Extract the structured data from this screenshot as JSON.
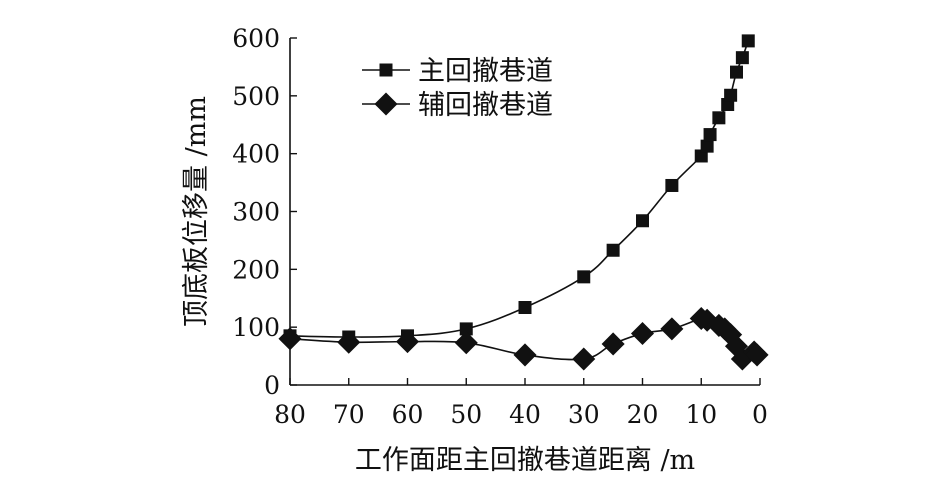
{
  "chart_data": {
    "type": "line",
    "title": "",
    "xlabel": "工作面距主回撤巷道距离 /m",
    "ylabel": "顶底板位移量 /mm",
    "xlim": [
      80,
      0
    ],
    "ylim": [
      0,
      600
    ],
    "x_reversed": true,
    "x_ticks": [
      "80",
      "70",
      "60",
      "50",
      "40",
      "30",
      "20",
      "10",
      "0"
    ],
    "y_ticks": [
      "0",
      "100",
      "200",
      "300",
      "400",
      "500",
      "600"
    ],
    "grid": false,
    "legend_position": "top-center",
    "series": [
      {
        "name": "主回撤巷道",
        "marker": "square",
        "color": "#111111",
        "points": [
          [
            80,
            85
          ],
          [
            70,
            83
          ],
          [
            60,
            85
          ],
          [
            50,
            97
          ],
          [
            40,
            134
          ],
          [
            30,
            187
          ],
          [
            25,
            233
          ],
          [
            20,
            284
          ],
          [
            15,
            345
          ],
          [
            10,
            396
          ],
          [
            9,
            413
          ],
          [
            8.5,
            433
          ],
          [
            7,
            462
          ],
          [
            5.5,
            485
          ],
          [
            5,
            501
          ],
          [
            4,
            541
          ],
          [
            3,
            566
          ],
          [
            2,
            595
          ]
        ]
      },
      {
        "name": "辅回撤巷道",
        "marker": "diamond",
        "color": "#111111",
        "points": [
          [
            80,
            80
          ],
          [
            70,
            74
          ],
          [
            60,
            75
          ],
          [
            50,
            73
          ],
          [
            40,
            52
          ],
          [
            30,
            45
          ],
          [
            25,
            71
          ],
          [
            20,
            89
          ],
          [
            15,
            97
          ],
          [
            10,
            115
          ],
          [
            9,
            112
          ],
          [
            7,
            103
          ],
          [
            6,
            97
          ],
          [
            5,
            87
          ],
          [
            4,
            67
          ],
          [
            3,
            45
          ],
          [
            1,
            57
          ],
          [
            0.5,
            52
          ]
        ]
      }
    ]
  }
}
